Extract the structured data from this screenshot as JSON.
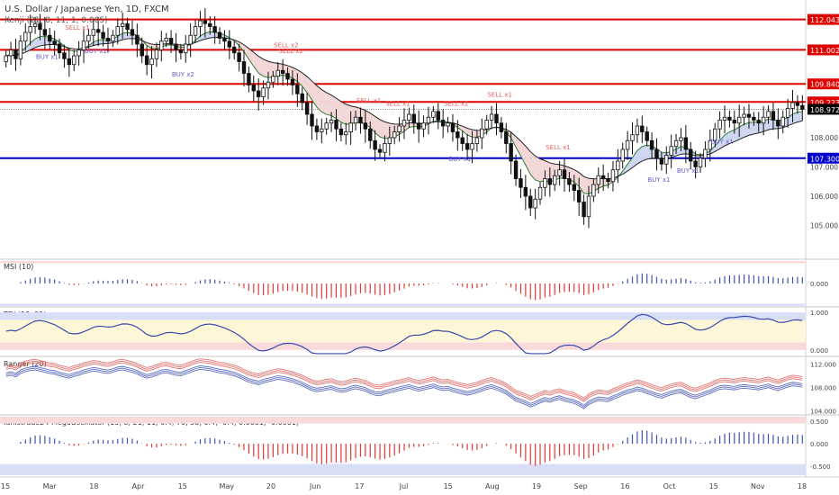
{
  "header": {
    "title": "U.S. Dollar / Japanese Yen, 1D, FXCM",
    "indicator": "Kenji (21, 8, 11, 1, 0.005)"
  },
  "colors": {
    "up_candle": "#ffffff",
    "down_candle": "#111111",
    "level_red": "#e00000",
    "level_blue": "#0000cc",
    "price_tag": "#000000",
    "buy_text": "#6a5acd",
    "sell_text": "#e06060",
    "ribbon_bull": "#cfd6f0",
    "ribbon_bear": "#f3d6d6"
  },
  "chart_data": [
    {
      "type": "candlestick",
      "title": "U.S. Dollar / Japanese Yen, 1D, FXCM",
      "xlabel": "",
      "ylabel": "",
      "ylim": [
        104.0,
        112.4
      ],
      "price_levels": [
        {
          "value": "112.043",
          "color": "red"
        },
        {
          "value": "111.002",
          "color": "red"
        },
        {
          "value": "109.840",
          "color": "red"
        },
        {
          "value": "109.223",
          "color": "red"
        },
        {
          "value": "107.300",
          "color": "blue"
        }
      ],
      "last_price": "108.972",
      "yticks": [
        "108.000",
        "107.000",
        "106.000",
        "105.000"
      ],
      "x_ticks": [
        "15",
        "Mar",
        "18",
        "Apr",
        "15",
        "May",
        "20",
        "Jun",
        "17",
        "Jul",
        "15",
        "Aug",
        "19",
        "Sep",
        "16",
        "Oct",
        "15",
        "Nov",
        "18"
      ],
      "close_series": [
        110.8,
        111.0,
        110.7,
        111.3,
        111.6,
        111.8,
        111.9,
        111.7,
        111.5,
        111.3,
        111.2,
        110.9,
        110.7,
        110.5,
        110.8,
        111.0,
        111.3,
        111.5,
        111.7,
        111.6,
        111.4,
        111.3,
        111.5,
        111.8,
        111.9,
        111.7,
        111.5,
        111.2,
        110.8,
        110.5,
        110.7,
        111.0,
        111.3,
        111.4,
        111.2,
        111.0,
        110.9,
        111.2,
        111.5,
        111.8,
        112.0,
        111.9,
        111.8,
        111.6,
        111.4,
        111.3,
        111.1,
        110.9,
        110.6,
        110.2,
        109.8,
        109.6,
        109.4,
        109.7,
        109.9,
        110.1,
        110.3,
        110.2,
        110.0,
        109.8,
        109.5,
        109.2,
        108.8,
        108.4,
        108.2,
        108.3,
        108.5,
        108.6,
        108.3,
        108.1,
        108.2,
        108.5,
        108.7,
        108.5,
        108.3,
        107.9,
        107.6,
        107.5,
        107.8,
        108.0,
        108.2,
        108.4,
        108.6,
        108.8,
        108.5,
        108.3,
        108.5,
        108.7,
        108.9,
        108.6,
        108.4,
        108.5,
        108.2,
        108.0,
        107.8,
        107.6,
        107.8,
        108.0,
        108.3,
        108.6,
        108.8,
        108.5,
        108.2,
        107.8,
        107.2,
        106.6,
        106.3,
        106.0,
        105.6,
        105.9,
        106.3,
        106.6,
        106.4,
        106.7,
        106.9,
        106.6,
        106.4,
        106.2,
        105.8,
        105.3,
        106.0,
        106.4,
        106.7,
        106.6,
        106.5,
        106.9,
        107.2,
        107.6,
        107.9,
        108.1,
        108.4,
        108.2,
        107.9,
        107.6,
        107.3,
        107.1,
        107.4,
        107.7,
        107.9,
        108.0,
        107.6,
        107.2,
        107.0,
        107.3,
        107.6,
        107.9,
        108.3,
        108.6,
        108.7,
        108.6,
        108.5,
        108.7,
        108.8,
        108.7,
        108.6,
        108.5,
        108.7,
        108.9,
        108.6,
        108.4,
        108.7,
        109.0,
        109.2,
        109.1,
        108.97
      ],
      "signals": [
        {
          "label": "BUY x1",
          "kind": "buy"
        },
        {
          "label": "SELL x1",
          "kind": "sell"
        },
        {
          "label": "BUY x1",
          "kind": "buy"
        },
        {
          "label": "BUY x2",
          "kind": "buy"
        },
        {
          "label": "SELL x2",
          "kind": "sell"
        },
        {
          "label": "SELL x2",
          "kind": "sell"
        },
        {
          "label": "SELL x1",
          "kind": "sell"
        },
        {
          "label": "SELL x1",
          "kind": "sell"
        },
        {
          "label": "BUY x1",
          "kind": "buy"
        },
        {
          "label": "SELL x1",
          "kind": "sell"
        },
        {
          "label": "SELL x2",
          "kind": "sell"
        },
        {
          "label": "BUY x1",
          "kind": "buy"
        },
        {
          "label": "SELL x1",
          "kind": "sell"
        },
        {
          "label": "BUY x1",
          "kind": "buy"
        },
        {
          "label": "BUY x1",
          "kind": "buy"
        }
      ]
    },
    {
      "type": "bar",
      "title": "MSI (10)",
      "ylim": [
        -1,
        1
      ],
      "yticks": [
        "0.000"
      ]
    },
    {
      "type": "line",
      "title": "TDI (13, 21)",
      "ylim": [
        -0.15,
        1.1
      ],
      "yticks": [
        "1.000",
        "0.000"
      ]
    },
    {
      "type": "line",
      "title": "Ranger (20)",
      "ylim": [
        103.5,
        113
      ],
      "yticks": [
        "112.000",
        "108.000",
        "104.000"
      ]
    },
    {
      "type": "bar",
      "title": "Idnistrade24 MegaOscillator (13, 8, 21, 11, 0.4, 70, 30, 0.4, -0.4, 0.0001, -0.0001)",
      "ylim": [
        -0.7,
        0.6
      ],
      "yticks": [
        "0.500",
        "0.000",
        "-0.500"
      ]
    }
  ]
}
